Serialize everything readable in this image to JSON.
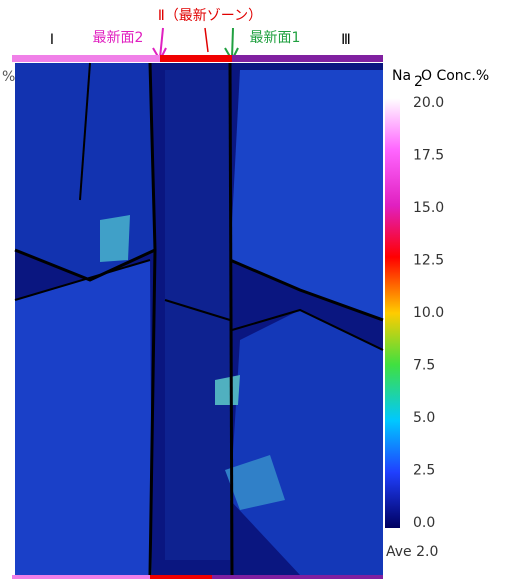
{
  "labels": {
    "zone1": "Ⅰ",
    "face2": "最新面2",
    "zone2": "Ⅱ（最新ゾーン）",
    "face1": "最新面1",
    "zone3": "Ⅲ",
    "left_unit": "%"
  },
  "colorbar": {
    "title_main": "Na",
    "title_sub": "2",
    "title_rest": "O Conc.%",
    "ticks": [
      "20.0",
      "17.5",
      "15.0",
      "12.5",
      "10.0",
      "7.5",
      "5.0",
      "2.5",
      "0.0"
    ],
    "average": "Ave 2.0"
  }
}
